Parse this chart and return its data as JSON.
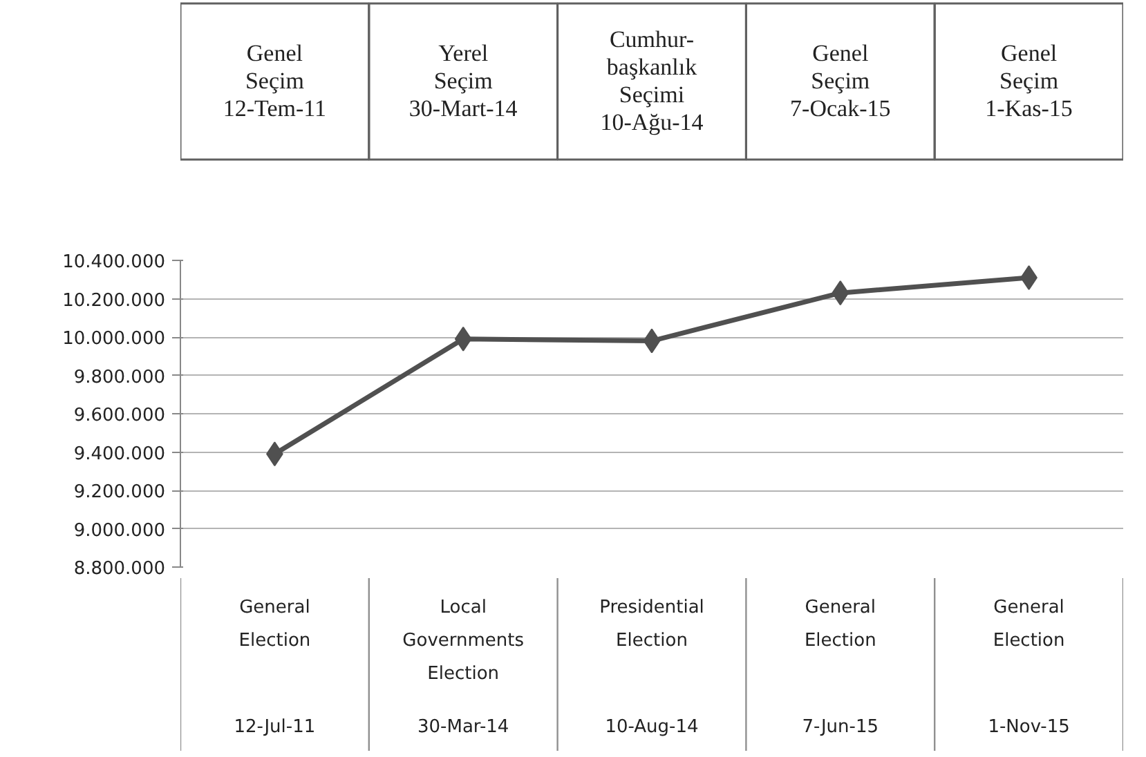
{
  "chart_data": {
    "type": "line",
    "categories": [
      "General\nElection\n12-Jul-11",
      "Local\nGovernments\nElection\n30-Mar-14",
      "Presidential\nElection\n10-Aug-14",
      "General\nElection\n7-Jun-15",
      "General\nElection\n1-Nov-15"
    ],
    "series": [
      {
        "color": "#505050",
        "values": [
          9390000,
          9990000,
          9980000,
          10230000,
          10310000
        ]
      }
    ],
    "ylim": [
      8800000,
      10400000
    ],
    "yticks": [
      {
        "value": 8800000,
        "label": "8.800.000"
      },
      {
        "value": 9000000,
        "label": "9.000.000"
      },
      {
        "value": 9200000,
        "label": "9.200.000"
      },
      {
        "value": 9400000,
        "label": "9.400.000"
      },
      {
        "value": 9600000,
        "label": "9.600.000"
      },
      {
        "value": 9800000,
        "label": "9.800.000"
      },
      {
        "value": 10000000,
        "label": "10.000.000"
      },
      {
        "value": 10200000,
        "label": "10.200.000"
      },
      {
        "value": 10400000,
        "label": "10.400.000"
      }
    ],
    "grid": "y",
    "marker": "diamond",
    "annotations": [
      "Genel\nSeçim\n12-Tem-11",
      "Yerel\nSeçim\n30-Mart-14",
      "Cumhur-\nbaşkanlık\nSeçimi\n10-Ağu-14",
      "Genel\nSeçim\n7-Ocak-15",
      "Genel\nSeçim\n1-Kas-15"
    ]
  }
}
